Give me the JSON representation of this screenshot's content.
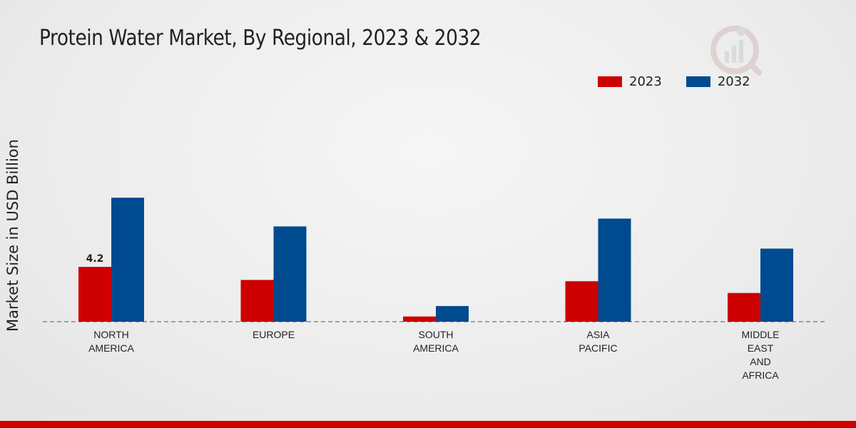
{
  "title": "Protein Water Market, By Regional, 2023 & 2032",
  "colors": {
    "series_2023": "#cc0000",
    "series_2032": "#004a8f",
    "accent_bar": "#d00000"
  },
  "logo_icon": "market-research-logo-icon",
  "chart_data": {
    "type": "bar",
    "title": "Protein Water Market, By Regional, 2023 & 2032",
    "xlabel": "",
    "ylabel": "Market Size in USD Billion",
    "ylim": [
      0,
      13
    ],
    "legend_position": "top-right",
    "categories": [
      [
        "NORTH",
        "AMERICA"
      ],
      [
        "EUROPE"
      ],
      [
        "SOUTH",
        "AMERICA"
      ],
      [
        "ASIA",
        "PACIFIC"
      ],
      [
        "MIDDLE",
        "EAST",
        "AND",
        "AFRICA"
      ]
    ],
    "series": [
      {
        "name": "2023",
        "values": [
          4.2,
          3.2,
          0.4,
          3.1,
          2.2
        ]
      },
      {
        "name": "2032",
        "values": [
          9.5,
          7.3,
          1.2,
          7.9,
          5.6
        ]
      }
    ],
    "data_labels": [
      {
        "series": 0,
        "index": 0,
        "text": "4.2"
      }
    ]
  }
}
